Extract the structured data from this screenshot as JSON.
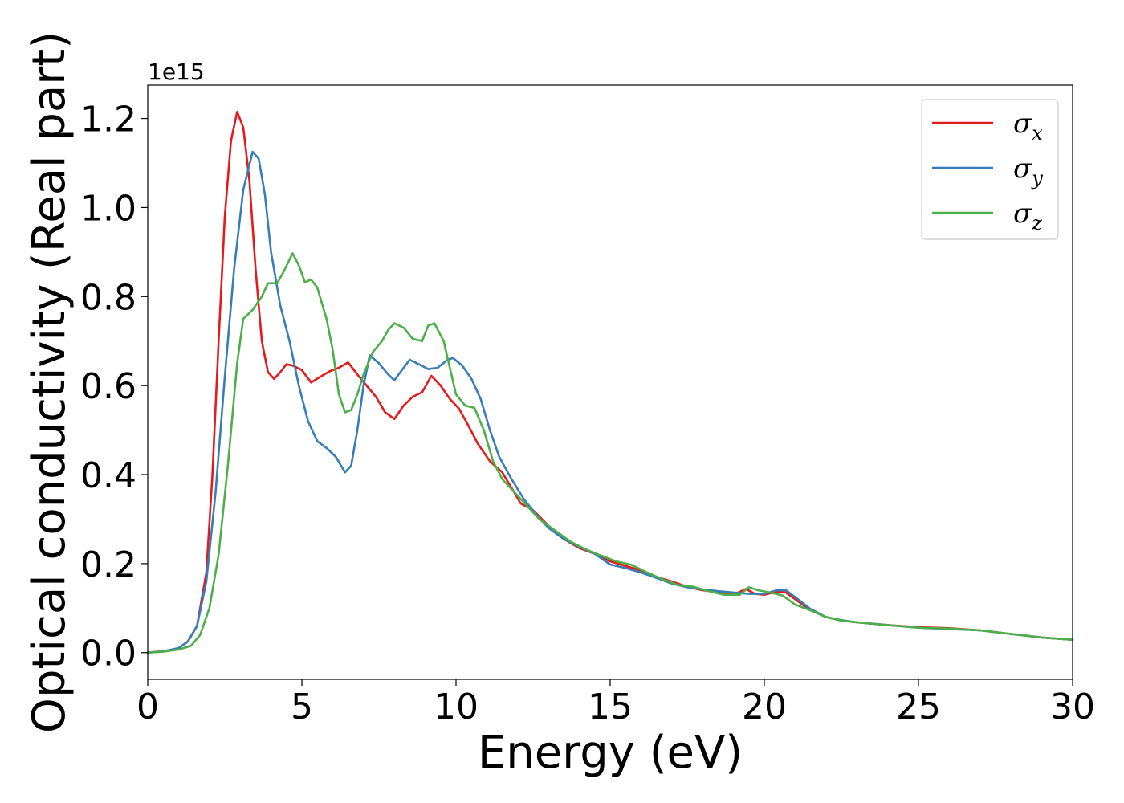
{
  "chart_data": {
    "type": "line",
    "xlabel": "Energy (eV)",
    "ylabel": "Optical conductivity (Real part)",
    "y_offset_label": "1e15",
    "xlim": [
      0,
      30
    ],
    "ylim": [
      -0.06,
      1.275
    ],
    "xticks": [
      0,
      5,
      10,
      15,
      20,
      25,
      30
    ],
    "xtick_labels": [
      "0",
      "5",
      "10",
      "15",
      "20",
      "25",
      "30"
    ],
    "yticks": [
      0.0,
      0.2,
      0.4,
      0.6,
      0.8,
      1.0,
      1.2
    ],
    "ytick_labels": [
      "0.0",
      "0.2",
      "0.4",
      "0.6",
      "0.8",
      "1.0",
      "1.2"
    ],
    "grid": false,
    "legend_position": "top-right",
    "series": [
      {
        "name": "σx",
        "symbol": "σ",
        "subscript": "x",
        "color": "#e41a1c",
        "points": [
          [
            0,
            0
          ],
          [
            0.5,
            0.003
          ],
          [
            1.0,
            0.01
          ],
          [
            1.3,
            0.025
          ],
          [
            1.6,
            0.06
          ],
          [
            1.9,
            0.18
          ],
          [
            2.1,
            0.4
          ],
          [
            2.3,
            0.7
          ],
          [
            2.5,
            0.98
          ],
          [
            2.7,
            1.15
          ],
          [
            2.9,
            1.215
          ],
          [
            3.1,
            1.18
          ],
          [
            3.3,
            1.06
          ],
          [
            3.5,
            0.86
          ],
          [
            3.7,
            0.7
          ],
          [
            3.9,
            0.63
          ],
          [
            4.1,
            0.615
          ],
          [
            4.3,
            0.63
          ],
          [
            4.5,
            0.648
          ],
          [
            4.7,
            0.645
          ],
          [
            5.0,
            0.635
          ],
          [
            5.3,
            0.607
          ],
          [
            5.6,
            0.62
          ],
          [
            5.9,
            0.632
          ],
          [
            6.2,
            0.64
          ],
          [
            6.5,
            0.652
          ],
          [
            6.8,
            0.625
          ],
          [
            7.1,
            0.6
          ],
          [
            7.4,
            0.575
          ],
          [
            7.7,
            0.54
          ],
          [
            8.0,
            0.525
          ],
          [
            8.3,
            0.555
          ],
          [
            8.6,
            0.575
          ],
          [
            8.9,
            0.585
          ],
          [
            9.2,
            0.622
          ],
          [
            9.5,
            0.6
          ],
          [
            9.8,
            0.57
          ],
          [
            10.1,
            0.548
          ],
          [
            10.4,
            0.51
          ],
          [
            10.7,
            0.47
          ],
          [
            11.1,
            0.43
          ],
          [
            11.5,
            0.405
          ],
          [
            11.8,
            0.37
          ],
          [
            12.1,
            0.335
          ],
          [
            12.5,
            0.32
          ],
          [
            13.0,
            0.285
          ],
          [
            13.5,
            0.255
          ],
          [
            14.0,
            0.235
          ],
          [
            14.5,
            0.222
          ],
          [
            15.0,
            0.205
          ],
          [
            15.5,
            0.195
          ],
          [
            16.0,
            0.185
          ],
          [
            16.5,
            0.17
          ],
          [
            17.0,
            0.16
          ],
          [
            17.5,
            0.148
          ],
          [
            18.0,
            0.14
          ],
          [
            18.5,
            0.137
          ],
          [
            19.0,
            0.13
          ],
          [
            19.4,
            0.143
          ],
          [
            19.7,
            0.132
          ],
          [
            20.0,
            0.13
          ],
          [
            20.4,
            0.137
          ],
          [
            20.7,
            0.135
          ],
          [
            21.0,
            0.12
          ],
          [
            21.5,
            0.095
          ],
          [
            22.0,
            0.08
          ],
          [
            22.5,
            0.072
          ],
          [
            23.0,
            0.068
          ],
          [
            24.0,
            0.062
          ],
          [
            25.0,
            0.057
          ],
          [
            26.0,
            0.055
          ],
          [
            27.0,
            0.05
          ],
          [
            28.0,
            0.042
          ],
          [
            29.0,
            0.034
          ],
          [
            30.0,
            0.029
          ]
        ]
      },
      {
        "name": "σy",
        "symbol": "σ",
        "subscript": "y",
        "color": "#377eb8",
        "points": [
          [
            0,
            0
          ],
          [
            0.5,
            0.003
          ],
          [
            1.0,
            0.01
          ],
          [
            1.3,
            0.025
          ],
          [
            1.6,
            0.06
          ],
          [
            1.9,
            0.16
          ],
          [
            2.2,
            0.36
          ],
          [
            2.5,
            0.62
          ],
          [
            2.8,
            0.86
          ],
          [
            3.1,
            1.04
          ],
          [
            3.4,
            1.125
          ],
          [
            3.6,
            1.11
          ],
          [
            3.8,
            1.03
          ],
          [
            4.0,
            0.9
          ],
          [
            4.3,
            0.78
          ],
          [
            4.6,
            0.7
          ],
          [
            4.9,
            0.6
          ],
          [
            5.2,
            0.52
          ],
          [
            5.5,
            0.475
          ],
          [
            5.8,
            0.46
          ],
          [
            6.1,
            0.44
          ],
          [
            6.4,
            0.405
          ],
          [
            6.6,
            0.42
          ],
          [
            6.8,
            0.5
          ],
          [
            7.0,
            0.6
          ],
          [
            7.2,
            0.668
          ],
          [
            7.5,
            0.65
          ],
          [
            7.8,
            0.625
          ],
          [
            8.0,
            0.612
          ],
          [
            8.3,
            0.64
          ],
          [
            8.5,
            0.658
          ],
          [
            8.8,
            0.648
          ],
          [
            9.1,
            0.637
          ],
          [
            9.4,
            0.64
          ],
          [
            9.7,
            0.657
          ],
          [
            9.9,
            0.662
          ],
          [
            10.2,
            0.645
          ],
          [
            10.5,
            0.615
          ],
          [
            10.8,
            0.57
          ],
          [
            11.1,
            0.5
          ],
          [
            11.4,
            0.44
          ],
          [
            11.8,
            0.39
          ],
          [
            12.2,
            0.345
          ],
          [
            12.6,
            0.31
          ],
          [
            13.0,
            0.28
          ],
          [
            13.5,
            0.255
          ],
          [
            14.0,
            0.238
          ],
          [
            14.5,
            0.222
          ],
          [
            15.0,
            0.198
          ],
          [
            15.5,
            0.19
          ],
          [
            16.0,
            0.18
          ],
          [
            16.5,
            0.168
          ],
          [
            17.0,
            0.155
          ],
          [
            17.5,
            0.147
          ],
          [
            18.0,
            0.142
          ],
          [
            18.5,
            0.138
          ],
          [
            19.0,
            0.135
          ],
          [
            19.5,
            0.132
          ],
          [
            20.0,
            0.132
          ],
          [
            20.4,
            0.14
          ],
          [
            20.7,
            0.14
          ],
          [
            21.0,
            0.125
          ],
          [
            21.5,
            0.098
          ],
          [
            22.0,
            0.08
          ],
          [
            22.5,
            0.073
          ],
          [
            23.0,
            0.068
          ],
          [
            24.0,
            0.062
          ],
          [
            25.0,
            0.056
          ],
          [
            26.0,
            0.053
          ],
          [
            27.0,
            0.05
          ],
          [
            28.0,
            0.042
          ],
          [
            29.0,
            0.034
          ],
          [
            30.0,
            0.029
          ]
        ]
      },
      {
        "name": "σz",
        "symbol": "σ",
        "subscript": "z",
        "color": "#4daf4a",
        "points": [
          [
            0,
            0
          ],
          [
            0.5,
            0.002
          ],
          [
            1.0,
            0.007
          ],
          [
            1.4,
            0.015
          ],
          [
            1.7,
            0.04
          ],
          [
            2.0,
            0.1
          ],
          [
            2.3,
            0.22
          ],
          [
            2.6,
            0.42
          ],
          [
            2.9,
            0.65
          ],
          [
            3.1,
            0.75
          ],
          [
            3.4,
            0.77
          ],
          [
            3.7,
            0.8
          ],
          [
            3.9,
            0.83
          ],
          [
            4.2,
            0.83
          ],
          [
            4.4,
            0.855
          ],
          [
            4.7,
            0.897
          ],
          [
            4.9,
            0.87
          ],
          [
            5.1,
            0.832
          ],
          [
            5.3,
            0.838
          ],
          [
            5.5,
            0.82
          ],
          [
            5.8,
            0.75
          ],
          [
            6.0,
            0.68
          ],
          [
            6.2,
            0.58
          ],
          [
            6.4,
            0.54
          ],
          [
            6.6,
            0.545
          ],
          [
            6.8,
            0.58
          ],
          [
            7.0,
            0.625
          ],
          [
            7.3,
            0.675
          ],
          [
            7.6,
            0.7
          ],
          [
            7.8,
            0.725
          ],
          [
            8.0,
            0.74
          ],
          [
            8.3,
            0.73
          ],
          [
            8.6,
            0.705
          ],
          [
            8.9,
            0.7
          ],
          [
            9.1,
            0.735
          ],
          [
            9.3,
            0.74
          ],
          [
            9.6,
            0.7
          ],
          [
            9.8,
            0.64
          ],
          [
            10.0,
            0.58
          ],
          [
            10.3,
            0.555
          ],
          [
            10.6,
            0.55
          ],
          [
            10.9,
            0.5
          ],
          [
            11.2,
            0.43
          ],
          [
            11.5,
            0.39
          ],
          [
            11.9,
            0.36
          ],
          [
            12.3,
            0.33
          ],
          [
            12.7,
            0.3
          ],
          [
            13.2,
            0.275
          ],
          [
            13.7,
            0.25
          ],
          [
            14.2,
            0.232
          ],
          [
            14.7,
            0.218
          ],
          [
            15.2,
            0.205
          ],
          [
            15.7,
            0.197
          ],
          [
            16.2,
            0.18
          ],
          [
            16.7,
            0.165
          ],
          [
            17.2,
            0.152
          ],
          [
            17.7,
            0.148
          ],
          [
            18.2,
            0.138
          ],
          [
            18.7,
            0.13
          ],
          [
            19.2,
            0.13
          ],
          [
            19.5,
            0.147
          ],
          [
            19.8,
            0.14
          ],
          [
            20.2,
            0.135
          ],
          [
            20.6,
            0.128
          ],
          [
            21.0,
            0.108
          ],
          [
            21.5,
            0.095
          ],
          [
            22.0,
            0.08
          ],
          [
            22.5,
            0.072
          ],
          [
            23.0,
            0.068
          ],
          [
            24.0,
            0.062
          ],
          [
            25.0,
            0.056
          ],
          [
            26.0,
            0.054
          ],
          [
            27.0,
            0.05
          ],
          [
            28.0,
            0.042
          ],
          [
            29.0,
            0.034
          ],
          [
            30.0,
            0.029
          ]
        ]
      }
    ]
  }
}
